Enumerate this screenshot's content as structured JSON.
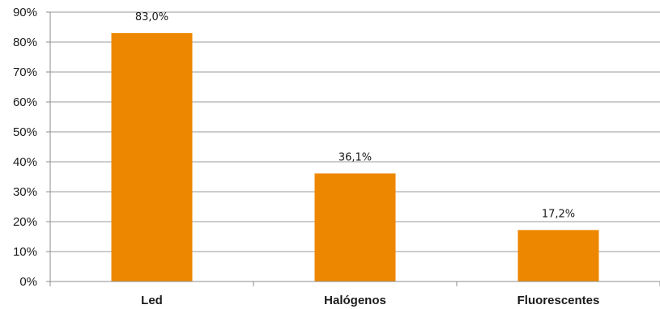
{
  "chart_data": {
    "type": "bar",
    "categories": [
      "Led",
      "Halógenos",
      "Fluorescentes"
    ],
    "values": [
      83.0,
      36.1,
      17.2
    ],
    "data_labels": [
      "83,0%",
      "36,1%",
      "17,2%"
    ],
    "title": "",
    "xlabel": "",
    "ylabel": "",
    "ylim": [
      0,
      90
    ],
    "yticks": [
      0,
      10,
      20,
      30,
      40,
      50,
      60,
      70,
      80,
      90
    ],
    "ytick_labels": [
      "0%",
      "10%",
      "20%",
      "30%",
      "40%",
      "50%",
      "60%",
      "70%",
      "80%",
      "90%"
    ],
    "grid": true,
    "legend": "none",
    "colors": {
      "bar": "#EE8700",
      "grid": "#9a9a9a",
      "axis": "#8c8c8c"
    }
  }
}
